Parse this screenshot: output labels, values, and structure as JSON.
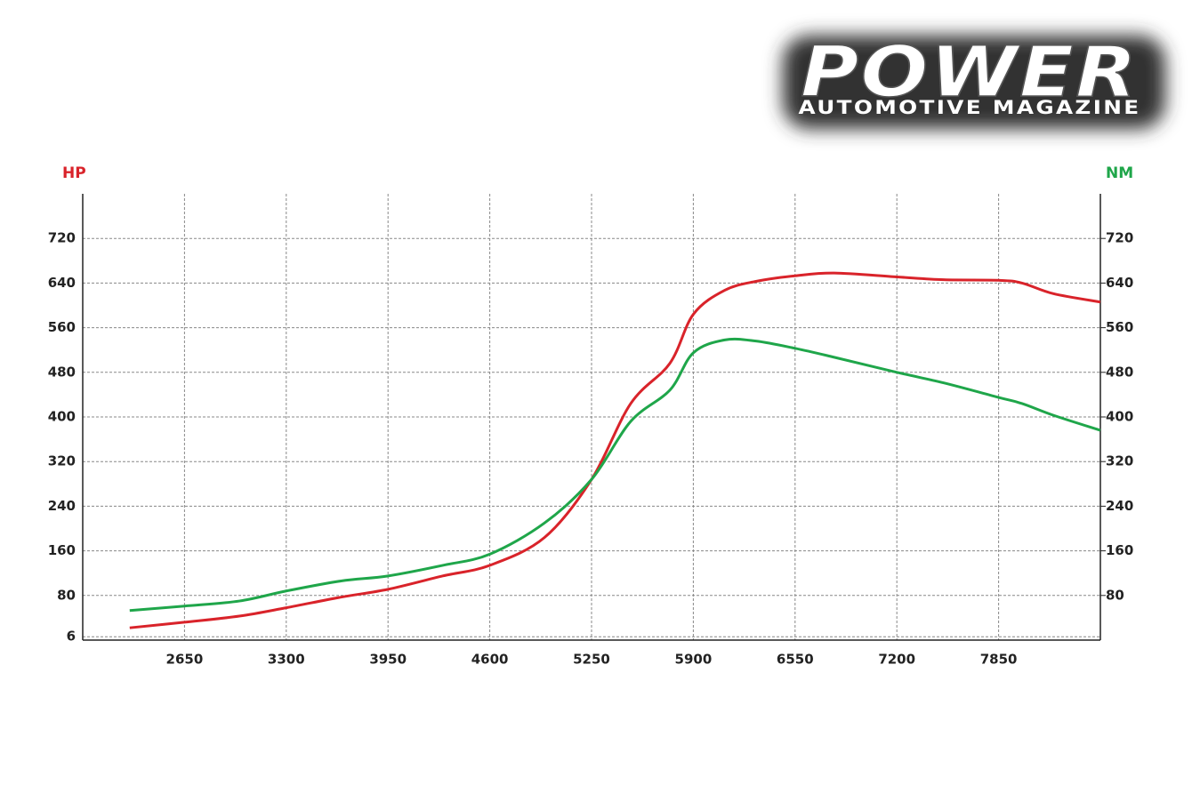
{
  "logo": {
    "title": "POWER",
    "subtitle": "AUTOMOTIVE MAGAZINE"
  },
  "chart_data": {
    "type": "line",
    "y_label": "HP",
    "y2_label": "NM",
    "x": [
      2300,
      2650,
      3000,
      3300,
      3650,
      3950,
      4300,
      4600,
      4950,
      5250,
      5500,
      5750,
      5900,
      6100,
      6300,
      6550,
      6800,
      7200,
      7500,
      7850,
      8000,
      8200,
      8500
    ],
    "series": [
      {
        "name": "HP",
        "color": "#d9232a",
        "values": [
          22,
          32,
          43,
          58,
          77,
          91,
          115,
          134,
          184,
          288,
          424,
          496,
          584,
          627,
          643,
          653,
          658,
          651,
          646,
          645,
          640,
          621,
          606
        ]
      },
      {
        "name": "NM",
        "color": "#1fa64a",
        "axis": "y2",
        "values": [
          53,
          61,
          70,
          88,
          106,
          115,
          134,
          154,
          210,
          288,
          392,
          448,
          515,
          538,
          536,
          523,
          507,
          480,
          461,
          435,
          424,
          403,
          376
        ]
      }
    ],
    "xlim": [
      2000,
      8500
    ],
    "xticks": [
      2650,
      3300,
      3950,
      4600,
      5250,
      5900,
      6550,
      7200,
      7850
    ],
    "ylim": [
      0,
      800
    ],
    "yticks": [
      6,
      80,
      160,
      240,
      320,
      400,
      480,
      560,
      640,
      720
    ],
    "y2lim": [
      0,
      800
    ],
    "y2ticks": [
      80,
      160,
      240,
      320,
      400,
      480,
      560,
      640,
      720
    ],
    "grid": true
  }
}
